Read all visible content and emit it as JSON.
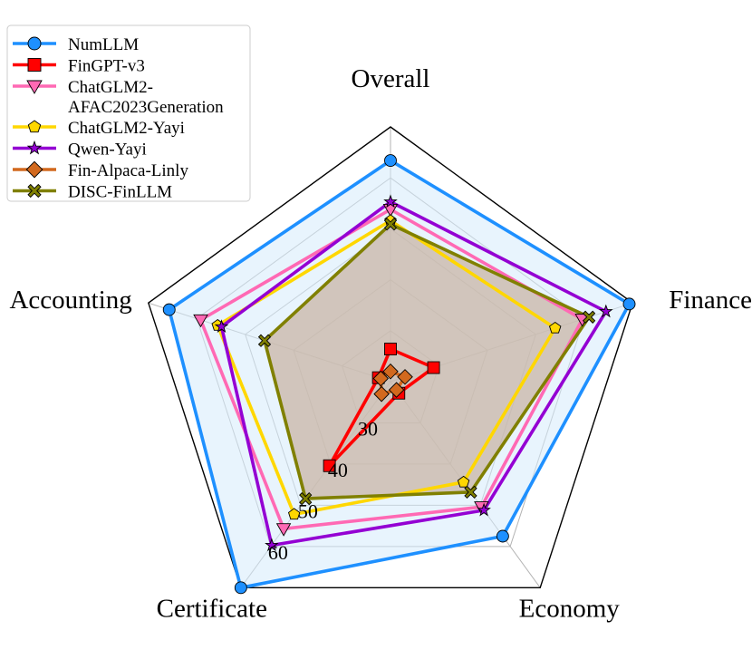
{
  "chart_data": {
    "type": "radar",
    "axes": [
      "Overall",
      "Finance",
      "Economy",
      "Certificate",
      "Accounting"
    ],
    "rlim": [
      20,
      70
    ],
    "tick_values": [
      30,
      40,
      50,
      60
    ],
    "tick_labels": [
      "30",
      "40",
      "50",
      "60"
    ],
    "grid": true,
    "legend_position": "top-left",
    "series": [
      {
        "name": "NumLLM",
        "color": "#1e90ff",
        "fill": true,
        "fill_color": "#d6ebfb",
        "marker": "circle",
        "values": [
          63.4,
          69.3,
          57.5,
          70.0,
          65.7
        ]
      },
      {
        "name": "FinGPT-v3",
        "color": "#ff0000",
        "fill": false,
        "marker": "square",
        "values": [
          26.4,
          28.9,
          22.8,
          40.4,
          22.5
        ]
      },
      {
        "name": "ChatGLM2-\nAFAC2023Generation",
        "color": "#ff69b4",
        "fill": false,
        "marker": "triangle-down",
        "values": [
          53.8,
          59.6,
          50.4,
          55.7,
          59.2
        ]
      },
      {
        "name": "ChatGLM2-Yayi",
        "color": "#ffd700",
        "fill": false,
        "marker": "pentagon",
        "values": [
          51.6,
          54.0,
          44.4,
          52.2,
          55.7
        ]
      },
      {
        "name": "Qwen-Yayi",
        "color": "#9400d3",
        "fill": false,
        "marker": "star",
        "values": [
          55.3,
          64.5,
          51.2,
          59.7,
          54.9
        ]
      },
      {
        "name": "Fin-Alpaca-Linly",
        "color": "#d2691e",
        "fill": false,
        "marker": "diamond",
        "values": [
          22.0,
          23.0,
          22.0,
          23.0,
          22.0
        ]
      },
      {
        "name": "DISC-FinLLM",
        "color": "#808000",
        "fill": true,
        "fill_color": "#c9b6a6",
        "marker": "x",
        "values": [
          50.9,
          61.0,
          46.8,
          48.4,
          46.0
        ]
      }
    ]
  }
}
